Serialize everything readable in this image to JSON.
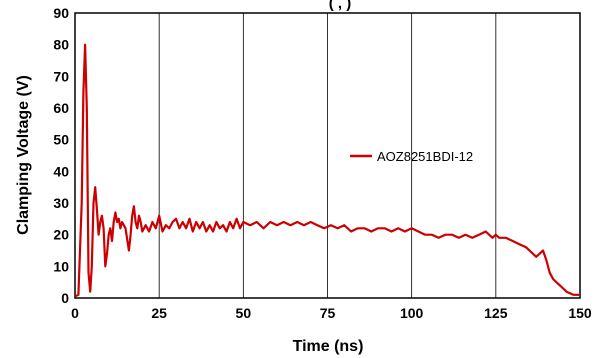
{
  "chart_data": {
    "type": "line",
    "title_partial": "(                  ,                                      )",
    "xlabel": "Time (ns)",
    "ylabel": "Clamping Voltage (V)",
    "xlim": [
      0,
      150
    ],
    "ylim": [
      0,
      90
    ],
    "xticks": [
      "0",
      "25",
      "50",
      "75",
      "100",
      "125",
      "150"
    ],
    "yticks": [
      "0",
      "10",
      "20",
      "30",
      "40",
      "50",
      "60",
      "70",
      "80",
      "90"
    ],
    "grid": true,
    "legend_position": "center-right",
    "series": [
      {
        "name": "AOZ8251BDI-12",
        "color": "#cc0000",
        "x": [
          0,
          1,
          2,
          2.5,
          3,
          3.5,
          4,
          4.5,
          5,
          5.5,
          6,
          6.5,
          7,
          7.5,
          8,
          8.5,
          9,
          9.5,
          10,
          10.5,
          11,
          11.5,
          12,
          12.5,
          13,
          13.5,
          14,
          15,
          16,
          16.5,
          17,
          17.5,
          18,
          18.5,
          19,
          19.5,
          20,
          21,
          22,
          23,
          24,
          25,
          26,
          27,
          28,
          29,
          30,
          31,
          32,
          33,
          34,
          35,
          36,
          37,
          38,
          39,
          40,
          41,
          42,
          43,
          44,
          45,
          46,
          47,
          48,
          49,
          50,
          52,
          54,
          56,
          58,
          60,
          62,
          64,
          66,
          68,
          70,
          72,
          74,
          76,
          78,
          80,
          82,
          84,
          86,
          88,
          90,
          92,
          94,
          96,
          98,
          100,
          102,
          104,
          106,
          108,
          110,
          112,
          114,
          116,
          118,
          120,
          122,
          124,
          125,
          126,
          128,
          130,
          132,
          134,
          136,
          137,
          138,
          139,
          140,
          141,
          142,
          143,
          144,
          145,
          146,
          147,
          148,
          149,
          150
        ],
        "y": [
          0.5,
          1,
          30,
          65,
          80,
          60,
          8,
          2,
          10,
          30,
          35,
          28,
          20,
          24,
          26,
          22,
          10,
          14,
          20,
          22,
          18,
          24,
          27,
          24,
          25,
          22,
          24,
          22,
          15,
          20,
          26,
          29,
          24,
          22,
          26,
          24,
          21,
          23,
          21,
          24,
          22,
          26,
          21,
          23,
          22,
          24,
          25,
          22,
          24,
          22,
          25,
          21,
          24,
          22,
          24,
          21,
          23,
          21,
          24,
          22,
          23,
          21,
          24,
          22,
          25,
          22,
          24,
          23,
          24,
          22,
          24,
          23,
          24,
          23,
          24,
          23,
          24,
          23,
          22,
          23,
          22,
          23,
          21,
          22,
          22,
          21,
          22,
          22,
          21,
          22,
          21,
          22,
          21,
          20,
          20,
          19,
          20,
          20,
          19,
          20,
          19,
          20,
          21,
          19,
          20,
          19,
          19,
          18,
          17,
          16,
          14,
          13,
          14,
          15,
          12,
          8,
          6,
          5,
          4,
          3,
          2,
          1.5,
          1,
          1,
          1
        ]
      }
    ]
  }
}
